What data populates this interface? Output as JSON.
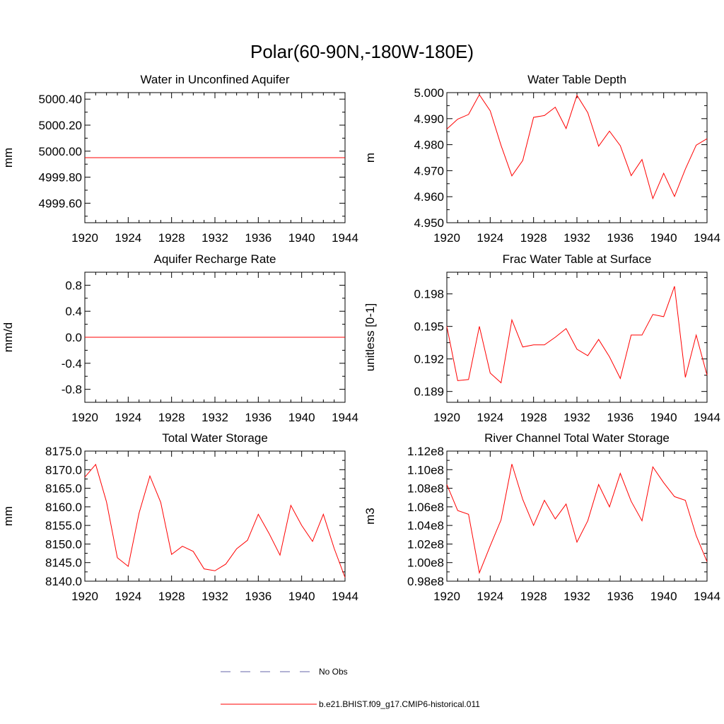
{
  "figure": {
    "title": "Polar(60-90N,-180W-180E)",
    "series_color": "#ff0000",
    "obs_color": "#6666aa"
  },
  "legend": {
    "obs_label": "No Obs",
    "model_label": "b.e21.BHIST.f09_g17.CMIP6-historical.011"
  },
  "chart_data": [
    {
      "type": "line",
      "title": "Water in Unconfined Aquifer",
      "ylabel": "mm",
      "xlim": [
        1920,
        1944
      ],
      "xticks": [
        "1920",
        "1924",
        "1928",
        "1932",
        "1936",
        "1940",
        "1944"
      ],
      "ylim": [
        4999.45,
        5000.45
      ],
      "yticks": [
        4999.6,
        4999.8,
        5000.0,
        5000.2,
        5000.4
      ],
      "ytick_labels": [
        "4999.60",
        "4999.80",
        "5000.00",
        "5000.20",
        "5000.40"
      ],
      "x": [
        1920,
        1921,
        1922,
        1923,
        1924,
        1925,
        1926,
        1927,
        1928,
        1929,
        1930,
        1931,
        1932,
        1933,
        1934,
        1935,
        1936,
        1937,
        1938,
        1939,
        1940,
        1941,
        1942,
        1943,
        1944
      ],
      "values": [
        4999.95,
        4999.95,
        4999.95,
        4999.95,
        4999.95,
        4999.95,
        4999.95,
        4999.95,
        4999.95,
        4999.95,
        4999.95,
        4999.95,
        4999.95,
        4999.95,
        4999.95,
        4999.95,
        4999.95,
        4999.95,
        4999.95,
        4999.95,
        4999.95,
        4999.95,
        4999.95,
        4999.95,
        4999.95
      ]
    },
    {
      "type": "line",
      "title": "Water Table Depth",
      "ylabel": "m",
      "xlim": [
        1920,
        1944
      ],
      "xticks": [
        "1920",
        "1924",
        "1928",
        "1932",
        "1936",
        "1940",
        "1944"
      ],
      "ylim": [
        4.95,
        5.0
      ],
      "yticks": [
        4.95,
        4.96,
        4.97,
        4.98,
        4.99,
        5.0
      ],
      "ytick_labels": [
        "4.950",
        "4.960",
        "4.970",
        "4.980",
        "4.990",
        "5.000"
      ],
      "x": [
        1920,
        1921,
        1922,
        1923,
        1924,
        1925,
        1926,
        1927,
        1928,
        1929,
        1930,
        1931,
        1932,
        1933,
        1934,
        1935,
        1936,
        1937,
        1938,
        1939,
        1940,
        1941,
        1942,
        1943,
        1944
      ],
      "values": [
        4.986,
        4.9898,
        4.9916,
        4.9992,
        4.993,
        4.9797,
        4.968,
        4.9739,
        4.9905,
        4.9912,
        4.9944,
        4.9862,
        4.999,
        4.9923,
        4.9794,
        4.9852,
        4.9796,
        4.9681,
        4.9743,
        4.9593,
        4.969,
        4.9601,
        4.9706,
        4.9798,
        4.9823
      ]
    },
    {
      "type": "line",
      "title": "Aquifer Recharge Rate",
      "ylabel": "mm/d",
      "xlim": [
        1920,
        1944
      ],
      "xticks": [
        "1920",
        "1924",
        "1928",
        "1932",
        "1936",
        "1940",
        "1944"
      ],
      "ylim": [
        -1.0,
        1.0
      ],
      "yticks": [
        -0.8,
        -0.4,
        0.0,
        0.4,
        0.8
      ],
      "ytick_labels": [
        "-0.8",
        "-0.4",
        "0.0",
        "0.4",
        "0.8"
      ],
      "x": [
        1920,
        1921,
        1922,
        1923,
        1924,
        1925,
        1926,
        1927,
        1928,
        1929,
        1930,
        1931,
        1932,
        1933,
        1934,
        1935,
        1936,
        1937,
        1938,
        1939,
        1940,
        1941,
        1942,
        1943,
        1944
      ],
      "values": [
        0,
        0,
        0,
        0,
        0,
        0,
        0,
        0,
        0,
        0,
        0,
        0,
        0,
        0,
        0,
        0,
        0,
        0,
        0,
        0,
        0,
        0,
        0,
        0,
        0
      ]
    },
    {
      "type": "line",
      "title": "Frac Water Table at Surface",
      "ylabel": "unitless [0-1]",
      "xlim": [
        1920,
        1944
      ],
      "xticks": [
        "1920",
        "1924",
        "1928",
        "1932",
        "1936",
        "1940",
        "1944"
      ],
      "ylim": [
        0.188,
        0.2
      ],
      "yticks": [
        0.189,
        0.192,
        0.195,
        0.198
      ],
      "ytick_labels": [
        "0.189",
        "0.192",
        "0.195",
        "0.198"
      ],
      "x": [
        1920,
        1921,
        1922,
        1923,
        1924,
        1925,
        1926,
        1927,
        1928,
        1929,
        1930,
        1931,
        1932,
        1933,
        1934,
        1935,
        1936,
        1937,
        1938,
        1939,
        1940,
        1941,
        1942,
        1943,
        1944
      ],
      "values": [
        0.195,
        0.19,
        0.1901,
        0.195,
        0.1907,
        0.1898,
        0.1956,
        0.1931,
        0.1933,
        0.1933,
        0.194,
        0.1948,
        0.1929,
        0.1923,
        0.1938,
        0.1922,
        0.1902,
        0.1942,
        0.1942,
        0.1961,
        0.1959,
        0.1987,
        0.1903,
        0.1942,
        0.1905
      ]
    },
    {
      "type": "line",
      "title": "Total Water Storage",
      "ylabel": "mm",
      "xlim": [
        1920,
        1944
      ],
      "xticks": [
        "1920",
        "1924",
        "1928",
        "1932",
        "1936",
        "1940",
        "1944"
      ],
      "ylim": [
        8140.0,
        8175.0
      ],
      "yticks": [
        8140,
        8145,
        8150,
        8155,
        8160,
        8165,
        8170,
        8175
      ],
      "ytick_labels": [
        "8140.0",
        "8145.0",
        "8150.0",
        "8155.0",
        "8160.0",
        "8165.0",
        "8170.0",
        "8175.0"
      ],
      "x": [
        1920,
        1921,
        1922,
        1923,
        1924,
        1925,
        1926,
        1927,
        1928,
        1929,
        1930,
        1931,
        1932,
        1933,
        1934,
        1935,
        1936,
        1937,
        1938,
        1939,
        1940,
        1941,
        1942,
        1943,
        1944
      ],
      "values": [
        8168.0,
        8171.4,
        8161.3,
        8146.3,
        8144.0,
        8158.3,
        8168.3,
        8161.2,
        8147.2,
        8149.4,
        8148.0,
        8143.3,
        8142.8,
        8144.6,
        8148.7,
        8151.0,
        8158.0,
        8152.8,
        8147.0,
        8160.4,
        8155.0,
        8150.7,
        8158.0,
        8148.8,
        8141.0
      ]
    },
    {
      "type": "line",
      "title": "River Channel Total Water Storage",
      "ylabel": "m3",
      "xlim": [
        1920,
        1944
      ],
      "xticks": [
        "1920",
        "1924",
        "1928",
        "1932",
        "1936",
        "1940",
        "1944"
      ],
      "ylim": [
        0.98,
        1.12
      ],
      "yticks": [
        0.98,
        1.0,
        1.02,
        1.04,
        1.06,
        1.08,
        1.1,
        1.12
      ],
      "ytick_labels": [
        "0.98e8",
        "1.00e8",
        "1.02e8",
        "1.04e8",
        "1.06e8",
        "1.08e8",
        "1.10e8",
        "1.12e8"
      ],
      "x": [
        1920,
        1921,
        1922,
        1923,
        1924,
        1925,
        1926,
        1927,
        1928,
        1929,
        1930,
        1931,
        1932,
        1933,
        1934,
        1935,
        1936,
        1937,
        1938,
        1939,
        1940,
        1941,
        1942,
        1943,
        1944
      ],
      "values": [
        1.084,
        1.056,
        1.052,
        0.989,
        1.018,
        1.046,
        1.106,
        1.068,
        1.04,
        1.067,
        1.047,
        1.063,
        1.022,
        1.045,
        1.084,
        1.06,
        1.096,
        1.066,
        1.045,
        1.103,
        1.086,
        1.071,
        1.067,
        1.029,
        1.001
      ]
    }
  ]
}
